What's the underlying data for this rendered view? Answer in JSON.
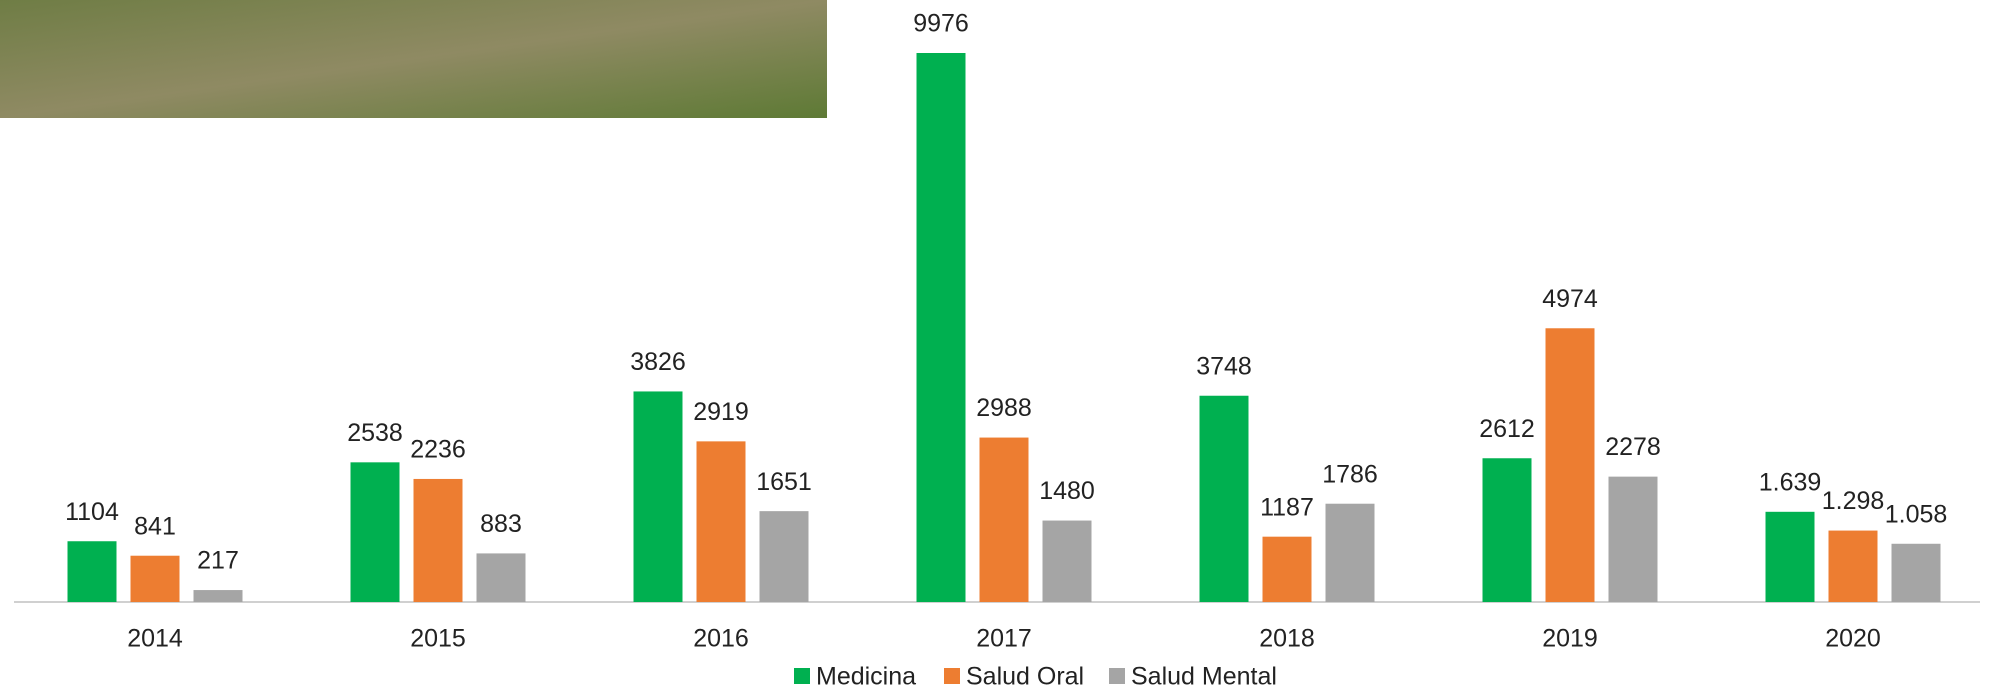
{
  "chart_data": {
    "type": "bar",
    "categories": [
      "2014",
      "2015",
      "2016",
      "2017",
      "2018",
      "2019",
      "2020"
    ],
    "series": [
      {
        "name": "Medicina",
        "color": "#00b050",
        "values": [
          1104,
          2538,
          3826,
          9976,
          3748,
          2612,
          1639
        ],
        "value_labels": [
          "1104",
          "2538",
          "3826",
          "9976",
          "3748",
          "2612",
          "1.639"
        ]
      },
      {
        "name": "Salud Oral",
        "color": "#ed7d31",
        "values": [
          841,
          2236,
          2919,
          2988,
          1187,
          4974,
          1298
        ],
        "value_labels": [
          "841",
          "2236",
          "2919",
          "2988",
          "1187",
          "4974",
          "1.298"
        ]
      },
      {
        "name": "Salud Mental",
        "color": "#a5a5a5",
        "values": [
          217,
          883,
          1651,
          1480,
          1786,
          2278,
          1058
        ],
        "value_labels": [
          "217",
          "883",
          "1651",
          "1480",
          "1786",
          "2278",
          "1.058"
        ]
      }
    ],
    "legend": "bottom"
  }
}
